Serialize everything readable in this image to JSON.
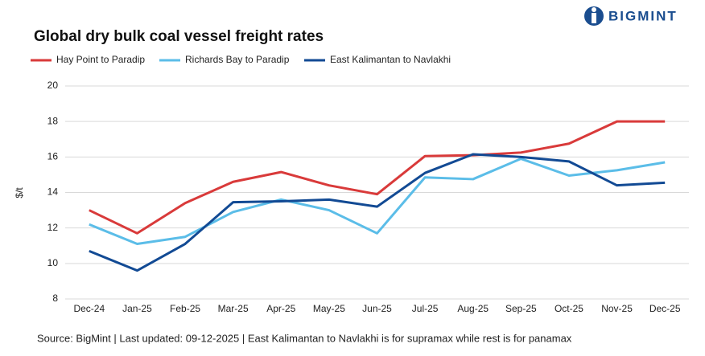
{
  "brand": "BIGMINT",
  "chart_data": {
    "type": "line",
    "title": "Global dry bulk coal vessel freight rates",
    "y_label": "$/t",
    "categories": [
      "Dec-24",
      "Jan-25",
      "Feb-25",
      "Mar-25",
      "Apr-25",
      "May-25",
      "Jun-25",
      "Jul-25",
      "Aug-25",
      "Sep-25",
      "Oct-25",
      "Nov-25",
      "Dec-25"
    ],
    "series": [
      {
        "name": "Hay Point to Paradip",
        "color": "#d93a3a",
        "values": [
          13.0,
          11.7,
          13.4,
          14.6,
          15.15,
          14.4,
          13.9,
          16.05,
          16.1,
          16.25,
          16.75,
          18.0,
          18.0
        ]
      },
      {
        "name": "Richards Bay to Paradip",
        "color": "#5bbde8",
        "values": [
          12.2,
          11.1,
          11.5,
          12.9,
          13.6,
          13.0,
          11.7,
          14.85,
          14.75,
          15.9,
          14.95,
          15.25,
          15.7
        ]
      },
      {
        "name": "East Kalimantan to Navlakhi",
        "color": "#124a94",
        "values": [
          10.7,
          9.6,
          11.1,
          13.45,
          13.5,
          13.6,
          13.2,
          15.1,
          16.15,
          16.0,
          15.75,
          14.4,
          14.55
        ]
      }
    ],
    "ylim": [
      8,
      20
    ],
    "yticks": [
      8,
      10,
      12,
      14,
      16,
      18,
      20
    ],
    "grid": true,
    "legend": "top-left",
    "source": "Source: BigMint | Last updated: 09-12-2025 | East Kalimantan to Navlakhi is for supramax while rest is for panamax"
  }
}
